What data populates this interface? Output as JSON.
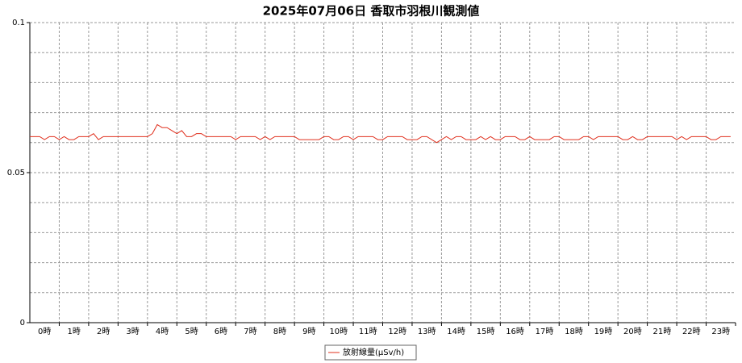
{
  "chart_data": {
    "type": "line",
    "title": "2025年07月06日 香取市羽根川観測値",
    "categories": [
      "0時",
      "1時",
      "2時",
      "3時",
      "4時",
      "5時",
      "6時",
      "7時",
      "8時",
      "9時",
      "10時",
      "11時",
      "12時",
      "13時",
      "14時",
      "15時",
      "16時",
      "17時",
      "18時",
      "19時",
      "20時",
      "21時",
      "22時",
      "23時"
    ],
    "xlim": [
      0,
      1440
    ],
    "x": [
      0,
      10,
      20,
      30,
      40,
      50,
      60,
      70,
      80,
      90,
      100,
      110,
      120,
      130,
      140,
      150,
      160,
      170,
      180,
      190,
      200,
      210,
      220,
      230,
      240,
      250,
      260,
      270,
      280,
      290,
      300,
      310,
      320,
      330,
      340,
      350,
      360,
      370,
      380,
      390,
      400,
      410,
      420,
      430,
      440,
      450,
      460,
      470,
      480,
      490,
      500,
      510,
      520,
      530,
      540,
      550,
      560,
      570,
      580,
      590,
      600,
      610,
      620,
      630,
      640,
      650,
      660,
      670,
      680,
      690,
      700,
      710,
      720,
      730,
      740,
      750,
      760,
      770,
      780,
      790,
      800,
      810,
      820,
      830,
      840,
      850,
      860,
      870,
      880,
      890,
      900,
      910,
      920,
      930,
      940,
      950,
      960,
      970,
      980,
      990,
      1000,
      1010,
      1020,
      1030,
      1040,
      1050,
      1060,
      1070,
      1080,
      1090,
      1100,
      1110,
      1120,
      1130,
      1140,
      1150,
      1160,
      1170,
      1180,
      1190,
      1200,
      1210,
      1220,
      1230,
      1240,
      1250,
      1260,
      1270,
      1280,
      1290,
      1300,
      1310,
      1320,
      1330,
      1340,
      1350,
      1360,
      1370,
      1380,
      1390,
      1400,
      1410,
      1420,
      1430
    ],
    "series": [
      {
        "name": "放射線量(μSv/h)",
        "color": "#e0301e",
        "values": [
          0.062,
          0.062,
          0.062,
          0.061,
          0.062,
          0.062,
          0.061,
          0.062,
          0.061,
          0.061,
          0.062,
          0.062,
          0.062,
          0.063,
          0.061,
          0.062,
          0.062,
          0.062,
          0.062,
          0.062,
          0.062,
          0.062,
          0.062,
          0.062,
          0.062,
          0.063,
          0.066,
          0.065,
          0.065,
          0.064,
          0.063,
          0.064,
          0.062,
          0.062,
          0.063,
          0.063,
          0.062,
          0.062,
          0.062,
          0.062,
          0.062,
          0.062,
          0.061,
          0.062,
          0.062,
          0.062,
          0.062,
          0.061,
          0.062,
          0.061,
          0.062,
          0.062,
          0.062,
          0.062,
          0.062,
          0.061,
          0.061,
          0.061,
          0.061,
          0.061,
          0.062,
          0.062,
          0.061,
          0.061,
          0.062,
          0.062,
          0.061,
          0.062,
          0.062,
          0.062,
          0.062,
          0.061,
          0.061,
          0.062,
          0.062,
          0.062,
          0.062,
          0.061,
          0.061,
          0.061,
          0.062,
          0.062,
          0.061,
          0.06,
          0.061,
          0.062,
          0.061,
          0.062,
          0.062,
          0.061,
          0.061,
          0.061,
          0.062,
          0.061,
          0.062,
          0.061,
          0.061,
          0.062,
          0.062,
          0.062,
          0.061,
          0.061,
          0.062,
          0.061,
          0.061,
          0.061,
          0.061,
          0.062,
          0.062,
          0.061,
          0.061,
          0.061,
          0.061,
          0.062,
          0.062,
          0.061,
          0.062,
          0.062,
          0.062,
          0.062,
          0.062,
          0.061,
          0.061,
          0.062,
          0.061,
          0.061,
          0.062,
          0.062,
          0.062,
          0.062,
          0.062,
          0.062,
          0.061,
          0.062,
          0.061,
          0.062,
          0.062,
          0.062,
          0.062,
          0.061,
          0.061,
          0.062,
          0.062,
          0.062
        ]
      }
    ],
    "ylim": [
      0,
      0.1
    ],
    "yticks": [
      0,
      0.05,
      0.1
    ],
    "ygrid": [
      0.01,
      0.02,
      0.03,
      0.04,
      0.05,
      0.06,
      0.07,
      0.08,
      0.09,
      0.1
    ],
    "grid": true,
    "legend": "bottom"
  }
}
